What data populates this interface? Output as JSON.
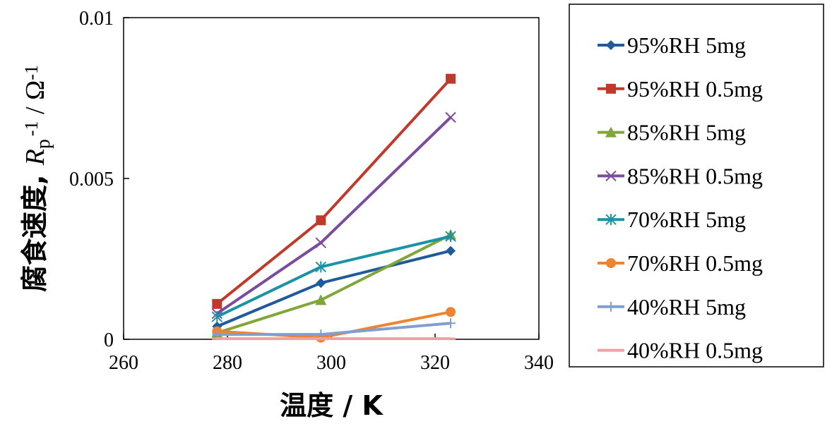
{
  "chart_data": {
    "type": "line",
    "xlabel": "温度 / K",
    "ylabel": "腐食速度, Rp-1 / Ω-1",
    "ylabel_parts": {
      "prefix": "腐食速度, ",
      "italic": "R",
      "sub": "p",
      "sup1": "-1",
      "mid": " / Ω",
      "sup2": "-1"
    },
    "xlim": [
      260,
      340
    ],
    "ylim": [
      0,
      0.01
    ],
    "xticks": [
      260,
      280,
      300,
      320,
      340
    ],
    "xtick_labels": [
      "260",
      "280",
      "300",
      "320",
      "340"
    ],
    "yticks": [
      0,
      0.005,
      0.01
    ],
    "ytick_labels": [
      "0",
      "0.005",
      "0.01"
    ],
    "grid": false,
    "legend_position": "right",
    "x": [
      278,
      298,
      323
    ],
    "series": [
      {
        "name": "95%RH 5mg",
        "color": "#1f5b9a",
        "marker": "diamond",
        "values": [
          0.0004,
          0.00175,
          0.00275
        ]
      },
      {
        "name": "95%RH 0.5mg",
        "color": "#c0392b",
        "marker": "square",
        "values": [
          0.0011,
          0.0037,
          0.0081
        ]
      },
      {
        "name": "85%RH 5mg",
        "color": "#7fa637",
        "marker": "triangle",
        "values": [
          0.0002,
          0.00122,
          0.00325
        ]
      },
      {
        "name": "85%RH 0.5mg",
        "color": "#7b4b9e",
        "marker": "x",
        "values": [
          0.0008,
          0.003,
          0.0069
        ]
      },
      {
        "name": "70%RH 5mg",
        "color": "#1b93a6",
        "marker": "asterisk",
        "values": [
          0.0007,
          0.00225,
          0.0032
        ]
      },
      {
        "name": "70%RH 0.5mg",
        "color": "#ee8330",
        "marker": "circle",
        "values": [
          0.00025,
          5e-05,
          0.00085
        ]
      },
      {
        "name": "40%RH 5mg",
        "color": "#7f9fd1",
        "marker": "plus",
        "values": [
          0.00015,
          0.00015,
          0.0005
        ]
      },
      {
        "name": "40%RH 0.5mg",
        "color": "#f0a0a0",
        "marker": "dash",
        "values": [
          2e-05,
          2e-05,
          2e-05
        ]
      }
    ]
  }
}
